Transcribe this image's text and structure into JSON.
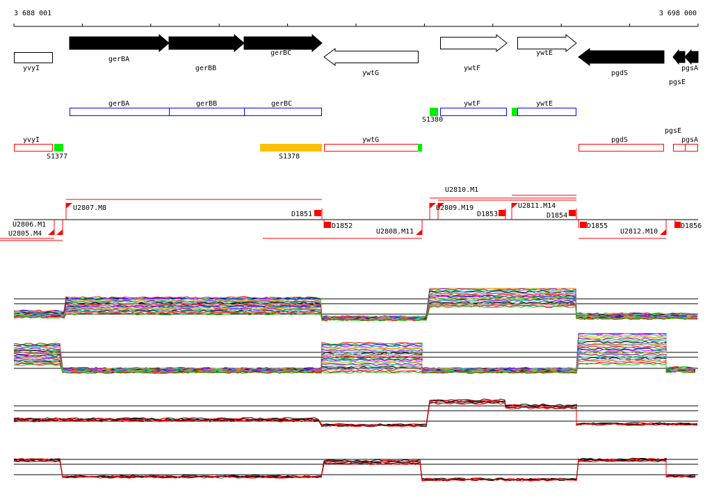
{
  "axis": {
    "start_label": "3 688 001",
    "end_label": "3 698 000"
  },
  "genes_top": [
    {
      "name": "yvyI"
    },
    {
      "name": "gerBA"
    },
    {
      "name": "gerBB"
    },
    {
      "name": "gerBC"
    },
    {
      "name": "ywtG"
    },
    {
      "name": "ywtF"
    },
    {
      "name": "ywtE"
    },
    {
      "name": "pgdS"
    },
    {
      "name": "pgsA"
    },
    {
      "name": "pgsE"
    }
  ],
  "operon_blue": [
    {
      "name": "gerBA"
    },
    {
      "name": "gerBB"
    },
    {
      "name": "gerBC"
    },
    {
      "name": "ywtF"
    },
    {
      "name": "ywtE"
    }
  ],
  "operon_red": [
    {
      "name": "yvyI"
    },
    {
      "name": "ywtG"
    },
    {
      "name": "pgdS"
    },
    {
      "name": "pgsE"
    },
    {
      "name": "pgsA"
    }
  ],
  "sites": {
    "s1377": "S1377",
    "s1378": "S1378",
    "s1380": "S1380"
  },
  "transcripts": {
    "u2807": "U2807.M8",
    "u2806": "U2806.M1",
    "u2805": "U2805.M4",
    "d1851": "D1851",
    "d1852": "D1852",
    "u2808": "U2808.M11",
    "u2809": "U2809.M19",
    "u2810": "U2810.M1",
    "d1853": "D1853",
    "u2811": "U2811.M14",
    "d1854": "D1854",
    "d1855": "D1855",
    "u2812": "U2812.M10",
    "d1856": "D1856"
  },
  "colors": {
    "red": "#ff0000",
    "blue": "#0000ff",
    "green": "#00ee00",
    "orange": "#ffc000"
  }
}
